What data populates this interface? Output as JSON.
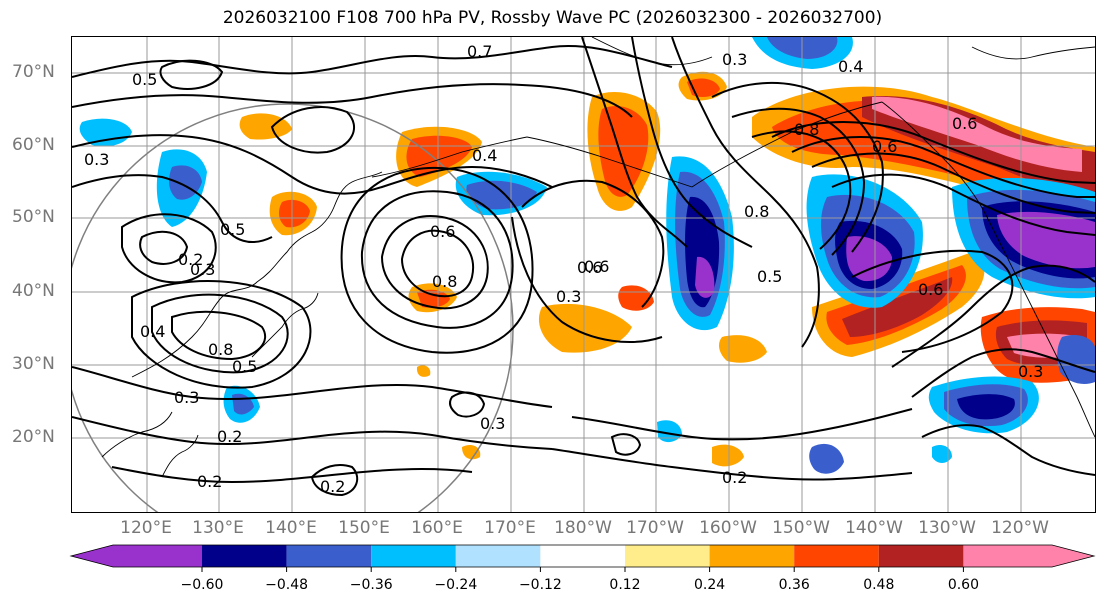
{
  "title": "2026032100 F108 700 hPa PV, Rossby Wave PC (2026032300 - 2026032700)",
  "lat_labels": [
    {
      "id": "70",
      "text": "70°N"
    },
    {
      "id": "60",
      "text": "60°N"
    },
    {
      "id": "50",
      "text": "50°N"
    },
    {
      "id": "40",
      "text": "40°N"
    },
    {
      "id": "30",
      "text": "30°N"
    },
    {
      "id": "20",
      "text": "20°N"
    }
  ],
  "lon_labels": [
    {
      "id": "120e",
      "text": "120°E"
    },
    {
      "id": "130e",
      "text": "130°E"
    },
    {
      "id": "140e",
      "text": "140°E"
    },
    {
      "id": "150e",
      "text": "150°E"
    },
    {
      "id": "160e",
      "text": "160°E"
    },
    {
      "id": "170e",
      "text": "170°E"
    },
    {
      "id": "180w",
      "text": "180°W"
    },
    {
      "id": "170w",
      "text": "170°W"
    },
    {
      "id": "160w",
      "text": "160°W"
    },
    {
      "id": "150w",
      "text": "150°W"
    },
    {
      "id": "140w",
      "text": "140°W"
    },
    {
      "id": "130w",
      "text": "130°W"
    },
    {
      "id": "120w",
      "text": "120°W"
    }
  ],
  "contour_labels": [
    "0.7",
    "0.4",
    "0.3",
    "0.8",
    "0.5",
    "0.6",
    "0.3",
    "0.4",
    "0.8",
    "0.6",
    "0.5",
    "0.8",
    "0.6",
    "0.3",
    "0.5",
    "0.3",
    "0.5",
    "0.3",
    "0.2",
    "0.3",
    "0.2",
    "0.2",
    "0.2",
    "0.6",
    "0.6",
    "0.3",
    "0.8",
    "0.2",
    "0.4",
    "0.6"
  ],
  "colorbar": {
    "colors": [
      "#9932cc",
      "#00008b",
      "#3a5fcd",
      "#00bfff",
      "#b0e2ff",
      "#ffffff",
      "#ffec8b",
      "#ffa500",
      "#ff4500",
      "#b22222",
      "#ff82ab"
    ],
    "ticks": [
      "−0.60",
      "−0.48",
      "−0.36",
      "−0.24",
      "−0.12",
      "0.12",
      "0.24",
      "0.36",
      "0.48",
      "0.60"
    ]
  }
}
